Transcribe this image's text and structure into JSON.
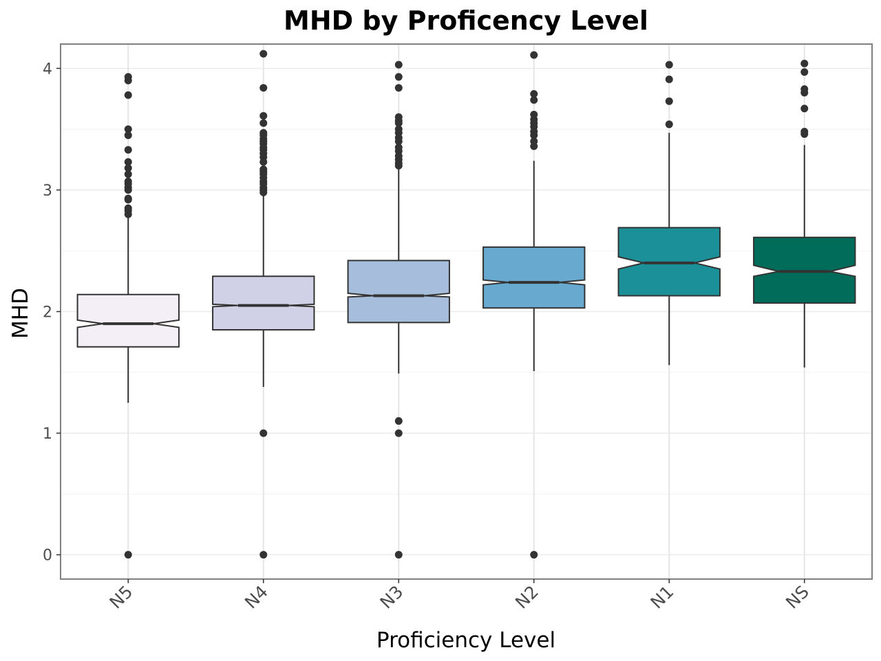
{
  "chart_data": {
    "type": "boxplot",
    "notched": true,
    "title": "MHD by Proficency Level",
    "xlabel": "Proficiency Level",
    "ylabel": "MHD",
    "ylim": [
      -0.2,
      4.2
    ],
    "yticks": [
      0,
      1,
      2,
      3,
      4
    ],
    "grid": true,
    "legend": "none",
    "categories": [
      "N5",
      "N4",
      "N3",
      "N2",
      "N1",
      "NS"
    ],
    "boxes": [
      {
        "category": "N5",
        "color": "#f4eef6",
        "q1": 1.71,
        "median": 1.9,
        "q3": 2.14,
        "notch_low": 1.87,
        "notch_high": 1.93,
        "whisker_low": 1.25,
        "whisker_high": 2.78,
        "outliers": [
          3.93,
          3.9,
          3.78,
          3.5,
          3.45,
          3.33,
          3.23,
          3.18,
          3.13,
          3.07,
          3.05,
          3.02,
          3.0,
          2.93,
          2.92,
          2.85,
          2.83,
          2.8,
          0.0
        ]
      },
      {
        "category": "N4",
        "color": "#d0d1e6",
        "q1": 1.85,
        "median": 2.05,
        "q3": 2.29,
        "notch_low": 2.04,
        "notch_high": 2.06,
        "whisker_low": 1.38,
        "whisker_high": 2.96,
        "outliers": [
          4.12,
          3.84,
          3.61,
          3.55,
          3.47,
          3.45,
          3.42,
          3.4,
          3.38,
          3.35,
          3.33,
          3.3,
          3.27,
          3.23,
          3.17,
          3.15,
          3.13,
          3.1,
          3.07,
          3.05,
          3.02,
          3.0,
          2.98,
          1.0,
          0.0
        ]
      },
      {
        "category": "N3",
        "color": "#a6bddb",
        "q1": 1.91,
        "median": 2.13,
        "q3": 2.42,
        "notch_low": 2.12,
        "notch_high": 2.15,
        "whisker_low": 1.49,
        "whisker_high": 3.17,
        "outliers": [
          4.03,
          3.93,
          3.84,
          3.6,
          3.57,
          3.55,
          3.5,
          3.47,
          3.43,
          3.4,
          3.35,
          3.32,
          3.28,
          3.25,
          3.22,
          3.2,
          1.1,
          1.0,
          0.0
        ]
      },
      {
        "category": "N2",
        "color": "#67a9cf",
        "q1": 2.03,
        "median": 2.24,
        "q3": 2.53,
        "notch_low": 2.22,
        "notch_high": 2.26,
        "whisker_low": 1.51,
        "whisker_high": 3.24,
        "outliers": [
          4.11,
          3.79,
          3.74,
          3.62,
          3.58,
          3.55,
          3.52,
          3.48,
          3.45,
          3.4,
          3.36,
          0.0
        ]
      },
      {
        "category": "N1",
        "color": "#1c9099",
        "q1": 2.13,
        "median": 2.4,
        "q3": 2.69,
        "notch_low": 2.35,
        "notch_high": 2.45,
        "whisker_low": 1.56,
        "whisker_high": 3.47,
        "outliers": [
          4.03,
          3.91,
          3.73,
          3.54
        ]
      },
      {
        "category": "NS",
        "color": "#016c59",
        "q1": 2.07,
        "median": 2.33,
        "q3": 2.61,
        "notch_low": 2.29,
        "notch_high": 2.38,
        "whisker_low": 1.54,
        "whisker_high": 3.37,
        "outliers": [
          4.04,
          3.97,
          3.83,
          3.8,
          3.67,
          3.48,
          3.46
        ]
      }
    ]
  }
}
